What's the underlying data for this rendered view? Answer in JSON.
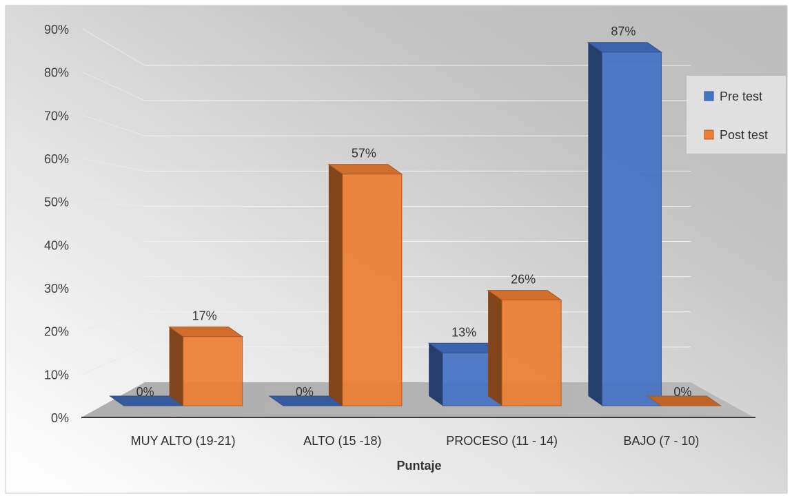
{
  "chart_data": {
    "type": "bar",
    "categories": [
      "MUY ALTO (19-21)",
      "ALTO (15 -18)",
      "PROCESO (11 - 14)",
      "BAJO (7 - 10)"
    ],
    "series": [
      {
        "name": "Pre test",
        "values": [
          0,
          0,
          13,
          87
        ],
        "labels": [
          "0%",
          "0%",
          "13%",
          "87%"
        ]
      },
      {
        "name": "Post test",
        "values": [
          17,
          57,
          26,
          0
        ],
        "labels": [
          "17%",
          "57%",
          "26%",
          "0%"
        ]
      }
    ],
    "xlabel": "Puntaje",
    "ylabel": "",
    "ylim": [
      0,
      90
    ],
    "yticks": [
      "0%",
      "10%",
      "20%",
      "30%",
      "40%",
      "50%",
      "60%",
      "70%",
      "80%",
      "90%"
    ],
    "grid": true,
    "legend_position": "right",
    "colors": {
      "pre": "#4472C4",
      "post": "#ED7D31"
    }
  }
}
